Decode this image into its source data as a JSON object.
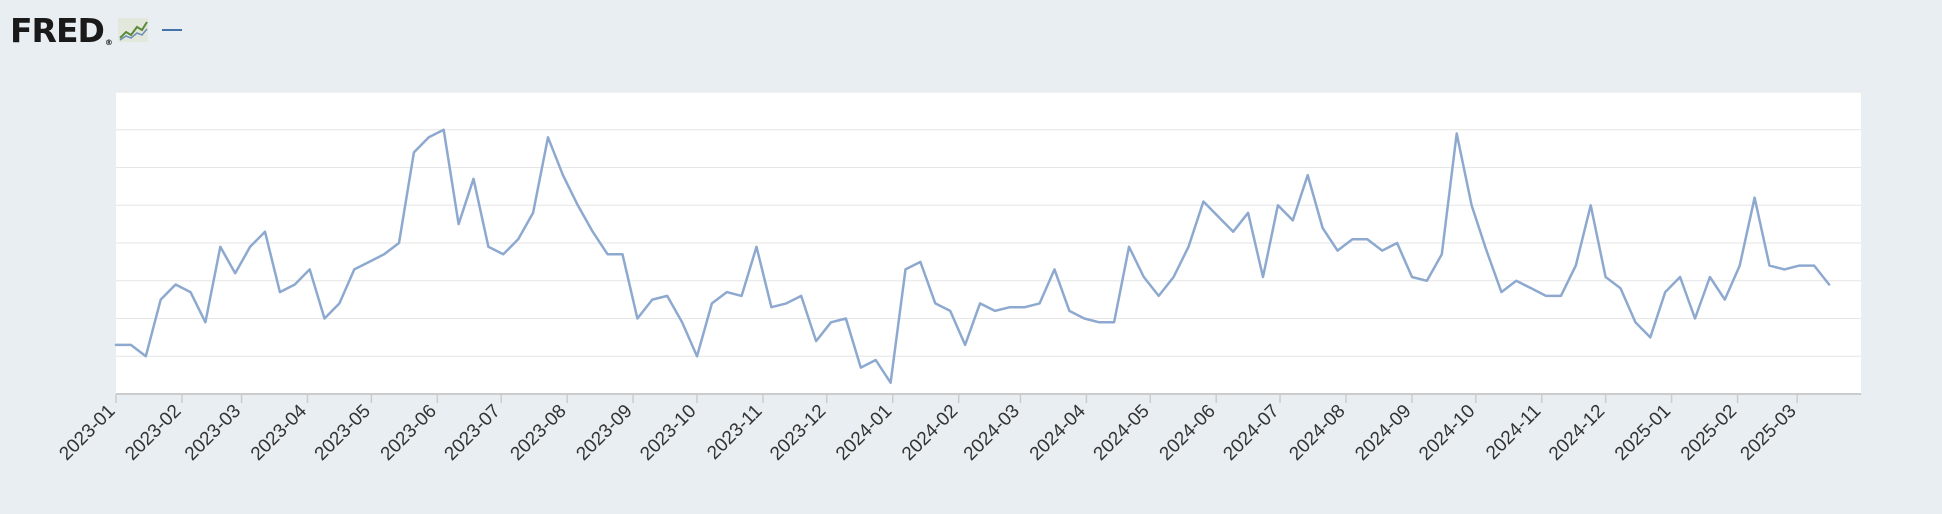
{
  "header": {
    "logo_text": "FRED",
    "logo_mark": "®",
    "logo_icon": "line-chart-icon"
  },
  "colors": {
    "line": "#8ea9cf",
    "swatch": "#4572a7",
    "plot_background": "#ffffff",
    "page_background": "#e9eef2",
    "grid": "#e6e6e6"
  },
  "chart_data": {
    "type": "line",
    "title": "",
    "xlabel": "",
    "ylabel": "",
    "x_axis": {
      "min": "2023-01-01",
      "max": "2025-03-31",
      "tick_labels": [
        "2023-01",
        "2023-02",
        "2023-03",
        "2023-04",
        "2023-05",
        "2023-06",
        "2023-07",
        "2023-08",
        "2023-09",
        "2023-10",
        "2023-11",
        "2023-12",
        "2024-01",
        "2024-02",
        "2024-03",
        "2024-04",
        "2024-05",
        "2024-06",
        "2024-07",
        "2024-08",
        "2024-09",
        "2024-10",
        "2024-11",
        "2024-12",
        "2025-01",
        "2025-02",
        "2025-03"
      ]
    },
    "y_axis": {
      "range": [
        0,
        8
      ],
      "tick_labels_shown": false
    },
    "grid": true,
    "legend": "none",
    "series": [
      {
        "values": [
          [
            "2023-01-01",
            1.3
          ],
          [
            "2023-01-08",
            1.3
          ],
          [
            "2023-01-15",
            1.0
          ],
          [
            "2023-01-22",
            2.5
          ],
          [
            "2023-01-29",
            2.9
          ],
          [
            "2023-02-05",
            2.7
          ],
          [
            "2023-02-12",
            1.9
          ],
          [
            "2023-02-19",
            3.9
          ],
          [
            "2023-02-26",
            3.2
          ],
          [
            "2023-03-05",
            3.9
          ],
          [
            "2023-03-12",
            4.3
          ],
          [
            "2023-03-19",
            2.7
          ],
          [
            "2023-03-26",
            2.9
          ],
          [
            "2023-04-02",
            3.3
          ],
          [
            "2023-04-09",
            2.0
          ],
          [
            "2023-04-16",
            2.4
          ],
          [
            "2023-04-23",
            3.3
          ],
          [
            "2023-04-30",
            3.5
          ],
          [
            "2023-05-07",
            3.7
          ],
          [
            "2023-05-14",
            4.0
          ],
          [
            "2023-05-21",
            6.4
          ],
          [
            "2023-05-28",
            6.8
          ],
          [
            "2023-06-04",
            7.0
          ],
          [
            "2023-06-11",
            4.5
          ],
          [
            "2023-06-18",
            5.7
          ],
          [
            "2023-06-25",
            3.9
          ],
          [
            "2023-07-02",
            3.7
          ],
          [
            "2023-07-09",
            4.1
          ],
          [
            "2023-07-16",
            4.8
          ],
          [
            "2023-07-23",
            6.8
          ],
          [
            "2023-07-30",
            5.8
          ],
          [
            "2023-08-06",
            5.0
          ],
          [
            "2023-08-13",
            4.3
          ],
          [
            "2023-08-20",
            3.7
          ],
          [
            "2023-08-27",
            3.7
          ],
          [
            "2023-09-03",
            2.0
          ],
          [
            "2023-09-10",
            2.5
          ],
          [
            "2023-09-17",
            2.6
          ],
          [
            "2023-09-24",
            1.9
          ],
          [
            "2023-10-01",
            1.0
          ],
          [
            "2023-10-08",
            2.4
          ],
          [
            "2023-10-15",
            2.7
          ],
          [
            "2023-10-22",
            2.6
          ],
          [
            "2023-10-29",
            3.9
          ],
          [
            "2023-11-05",
            2.3
          ],
          [
            "2023-11-12",
            2.4
          ],
          [
            "2023-11-19",
            2.6
          ],
          [
            "2023-11-26",
            1.4
          ],
          [
            "2023-12-03",
            1.9
          ],
          [
            "2023-12-10",
            2.0
          ],
          [
            "2023-12-17",
            0.7
          ],
          [
            "2023-12-24",
            0.9
          ],
          [
            "2023-12-31",
            0.3
          ],
          [
            "2024-01-07",
            3.3
          ],
          [
            "2024-01-14",
            3.5
          ],
          [
            "2024-01-21",
            2.4
          ],
          [
            "2024-01-28",
            2.2
          ],
          [
            "2024-02-04",
            1.3
          ],
          [
            "2024-02-11",
            2.4
          ],
          [
            "2024-02-18",
            2.2
          ],
          [
            "2024-02-25",
            2.3
          ],
          [
            "2024-03-03",
            2.3
          ],
          [
            "2024-03-10",
            2.4
          ],
          [
            "2024-03-17",
            3.3
          ],
          [
            "2024-03-24",
            2.2
          ],
          [
            "2024-03-31",
            2.0
          ],
          [
            "2024-04-07",
            1.9
          ],
          [
            "2024-04-14",
            1.9
          ],
          [
            "2024-04-21",
            3.9
          ],
          [
            "2024-04-28",
            3.1
          ],
          [
            "2024-05-05",
            2.6
          ],
          [
            "2024-05-12",
            3.1
          ],
          [
            "2024-05-19",
            3.9
          ],
          [
            "2024-05-26",
            5.1
          ],
          [
            "2024-06-02",
            4.7
          ],
          [
            "2024-06-09",
            4.3
          ],
          [
            "2024-06-16",
            4.8
          ],
          [
            "2024-06-23",
            3.1
          ],
          [
            "2024-06-30",
            5.0
          ],
          [
            "2024-07-07",
            4.6
          ],
          [
            "2024-07-14",
            5.8
          ],
          [
            "2024-07-21",
            4.4
          ],
          [
            "2024-07-28",
            3.8
          ],
          [
            "2024-08-04",
            4.1
          ],
          [
            "2024-08-11",
            4.1
          ],
          [
            "2024-08-18",
            3.8
          ],
          [
            "2024-08-25",
            4.0
          ],
          [
            "2024-09-01",
            3.1
          ],
          [
            "2024-09-08",
            3.0
          ],
          [
            "2024-09-15",
            3.7
          ],
          [
            "2024-09-22",
            6.9
          ],
          [
            "2024-09-29",
            5.0
          ],
          [
            "2024-10-06",
            3.8
          ],
          [
            "2024-10-13",
            2.7
          ],
          [
            "2024-10-20",
            3.0
          ],
          [
            "2024-10-27",
            2.8
          ],
          [
            "2024-11-03",
            2.6
          ],
          [
            "2024-11-10",
            2.6
          ],
          [
            "2024-11-17",
            3.4
          ],
          [
            "2024-11-24",
            5.0
          ],
          [
            "2024-12-01",
            3.1
          ],
          [
            "2024-12-08",
            2.8
          ],
          [
            "2024-12-15",
            1.9
          ],
          [
            "2024-12-22",
            1.5
          ],
          [
            "2024-12-29",
            2.7
          ],
          [
            "2025-01-05",
            3.1
          ],
          [
            "2025-01-12",
            2.0
          ],
          [
            "2025-01-19",
            3.1
          ],
          [
            "2025-01-26",
            2.5
          ],
          [
            "2025-02-02",
            3.4
          ],
          [
            "2025-02-09",
            5.2
          ],
          [
            "2025-02-16",
            3.4
          ],
          [
            "2025-02-23",
            3.3
          ],
          [
            "2025-03-02",
            3.4
          ],
          [
            "2025-03-09",
            3.4
          ],
          [
            "2025-03-16",
            2.9
          ]
        ]
      }
    ]
  }
}
